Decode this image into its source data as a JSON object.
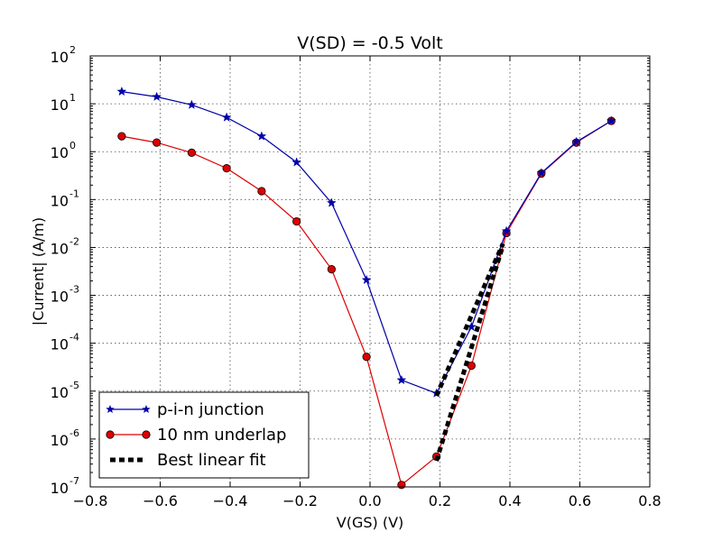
{
  "chart_data": {
    "type": "line",
    "title": "V(SD) = -0.5 Volt",
    "xlabel": "V(GS) (V)",
    "ylabel": "|Current| (A/m)",
    "xlim": [
      -0.8,
      0.8
    ],
    "ylim_log10": [
      -7,
      2
    ],
    "yscale": "log",
    "grid": true,
    "legend_position": "lower-left",
    "x_ticks": [
      "−0.8",
      "−0.6",
      "−0.4",
      "−0.2",
      "0.0",
      "0.2",
      "0.4",
      "0.6",
      "0.8"
    ],
    "y_ticks": [
      {
        "base": "10",
        "exp": "-7"
      },
      {
        "base": "10",
        "exp": "-6"
      },
      {
        "base": "10",
        "exp": "-5"
      },
      {
        "base": "10",
        "exp": "-4"
      },
      {
        "base": "10",
        "exp": "-3"
      },
      {
        "base": "10",
        "exp": "-2"
      },
      {
        "base": "10",
        "exp": "-1"
      },
      {
        "base": "10",
        "exp": "0"
      },
      {
        "base": "10",
        "exp": "1"
      },
      {
        "base": "10",
        "exp": "2"
      }
    ],
    "series": [
      {
        "name": "p-i-n junction",
        "color": "#0000aa",
        "marker": "star",
        "x": [
          -0.71,
          -0.61,
          -0.51,
          -0.41,
          -0.31,
          -0.21,
          -0.11,
          -0.01,
          0.09,
          0.19,
          0.29,
          0.39,
          0.49,
          0.59,
          0.69
        ],
        "y": [
          18,
          14,
          9.5,
          5.2,
          2.1,
          0.6,
          0.085,
          0.0021,
          1.7e-05,
          9e-06,
          0.00022,
          0.022,
          0.36,
          1.6,
          4.4
        ]
      },
      {
        "name": "10 nm underlap",
        "color": "#dd0000",
        "marker": "circle",
        "x": [
          -0.71,
          -0.61,
          -0.51,
          -0.41,
          -0.31,
          -0.21,
          -0.11,
          -0.01,
          0.09,
          0.19,
          0.29,
          0.39,
          0.49,
          0.59,
          0.69
        ],
        "y": [
          2.1,
          1.55,
          0.95,
          0.45,
          0.15,
          0.035,
          0.0035,
          5.2e-05,
          1.1e-07,
          4.3e-07,
          3.4e-05,
          0.02,
          0.35,
          1.55,
          4.4
        ]
      },
      {
        "name": "Best linear fit",
        "color": "#000000",
        "style": "dashed",
        "segments": [
          {
            "x": [
              0.19,
              0.38
            ],
            "y": [
              8e-06,
              0.012
            ]
          },
          {
            "x": [
              0.19,
              0.38
            ],
            "y": [
              3.5e-07,
              0.011
            ]
          }
        ]
      }
    ]
  }
}
